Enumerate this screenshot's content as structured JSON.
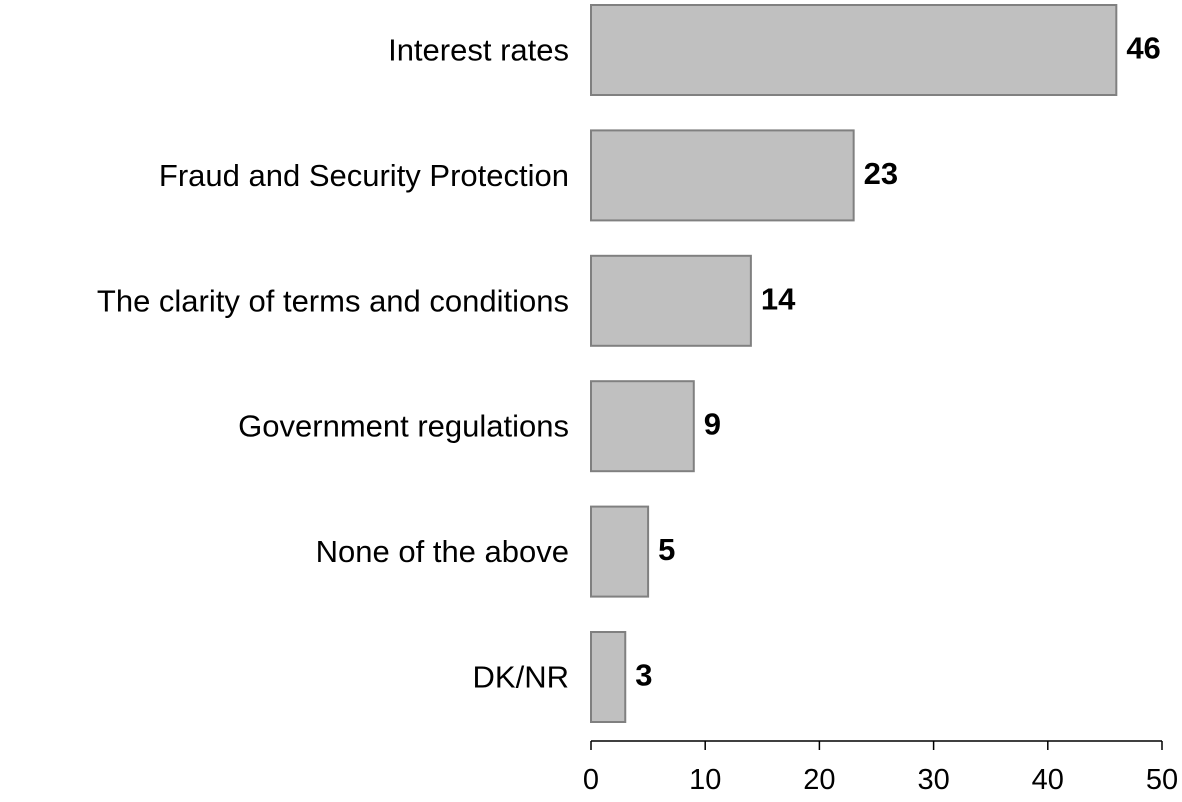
{
  "chart_data": {
    "type": "bar",
    "orientation": "horizontal",
    "categories": [
      "Interest rates",
      "Fraud and Security Protection",
      "The clarity of terms and conditions",
      "Government regulations",
      "None of the above",
      "DK/NR"
    ],
    "values": [
      46,
      23,
      14,
      9,
      5,
      3
    ],
    "value_labels": [
      "46",
      "23",
      "14",
      "9",
      "5",
      "3"
    ],
    "xlim": [
      0,
      50
    ],
    "x_ticks": [
      0,
      10,
      20,
      30,
      40,
      50
    ],
    "x_tick_labels": [
      "0",
      "10",
      "20",
      "30",
      "40",
      "50"
    ],
    "grid": false,
    "legend": "none",
    "colors": {
      "bar_fill": "#c0c0c0",
      "bar_stroke": "#808080",
      "axis": "#000000",
      "text": "#000000"
    }
  }
}
